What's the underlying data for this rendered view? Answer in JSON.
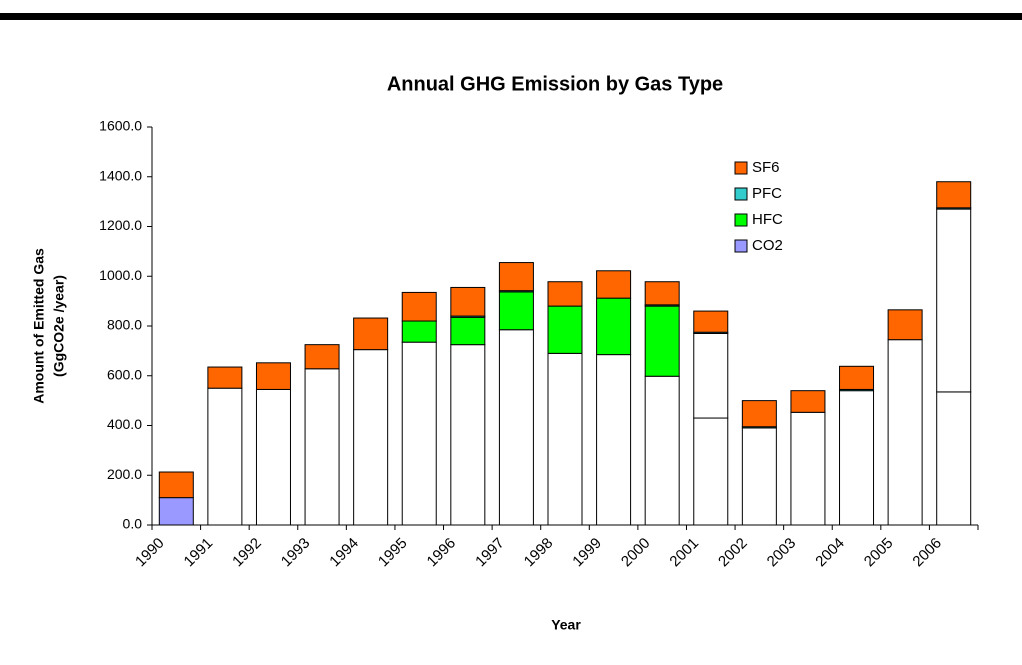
{
  "chart_data": {
    "type": "stacked_bar",
    "title": "Annual GHG Emission by Gas Type",
    "x_label": "Year",
    "y_label": [
      "Amount of Emitted Gas",
      "(GgCO2e /year)"
    ],
    "categories": [
      "1990",
      "1991",
      "1992",
      "1993",
      "1994",
      "1995",
      "1996",
      "1997",
      "1998",
      "1999",
      "2000",
      "2001",
      "2002",
      "2003",
      "2004",
      "2005",
      "2006"
    ],
    "series": [
      {
        "name": "CO2",
        "color": "#9999ff",
        "colors": [
          "#9999ff",
          "#ffffff",
          "#ffffff",
          "#ffffff",
          "#ffffff",
          "#ffffff",
          "#ffffff",
          "#ffffff",
          "#ffffff",
          "#ffffff",
          "#ffffff",
          "#ffffff",
          "#ffffff",
          "#ffffff",
          "#ffffff",
          "#ffffff",
          "#ffffff"
        ],
        "values": [
          110,
          550,
          545,
          628,
          705,
          735,
          725,
          785,
          690,
          685,
          598,
          430,
          390,
          453,
          540,
          745,
          535
        ]
      },
      {
        "color": "#ffffff",
        "values": [
          0,
          0,
          0,
          0,
          0,
          0,
          0,
          0,
          0,
          0,
          0,
          340,
          0,
          0,
          0,
          0,
          735
        ]
      },
      {
        "name": "HFC",
        "color": "#00ff00",
        "values": [
          0,
          0,
          0,
          0,
          0,
          85,
          110,
          152,
          190,
          227,
          282,
          0,
          0,
          0,
          0,
          0,
          0
        ]
      },
      {
        "name": "PFC",
        "color": "#33cccc",
        "values": [
          0,
          0,
          0,
          0,
          0,
          0,
          5,
          5,
          0,
          0,
          5,
          5,
          5,
          0,
          5,
          0,
          5
        ]
      },
      {
        "name": "SF6",
        "color": "#ff6600",
        "values": [
          103,
          85,
          107,
          97,
          127,
          115,
          115,
          113,
          98,
          110,
          93,
          85,
          105,
          87,
          93,
          120,
          105
        ]
      }
    ],
    "ylim": [
      0,
      1600
    ],
    "yticks": [
      {
        "value": 0,
        "label": "0.0"
      },
      {
        "value": 200,
        "label": "200.0"
      },
      {
        "value": 400,
        "label": "400.0"
      },
      {
        "value": 600,
        "label": "600.0"
      },
      {
        "value": 800,
        "label": "800.0"
      },
      {
        "value": 1000,
        "label": "1000.0"
      },
      {
        "value": 1200,
        "label": "1200.0"
      },
      {
        "value": 1400,
        "label": "1400.0"
      },
      {
        "value": 1600,
        "label": "1600.0"
      }
    ],
    "legend": "top-right"
  }
}
